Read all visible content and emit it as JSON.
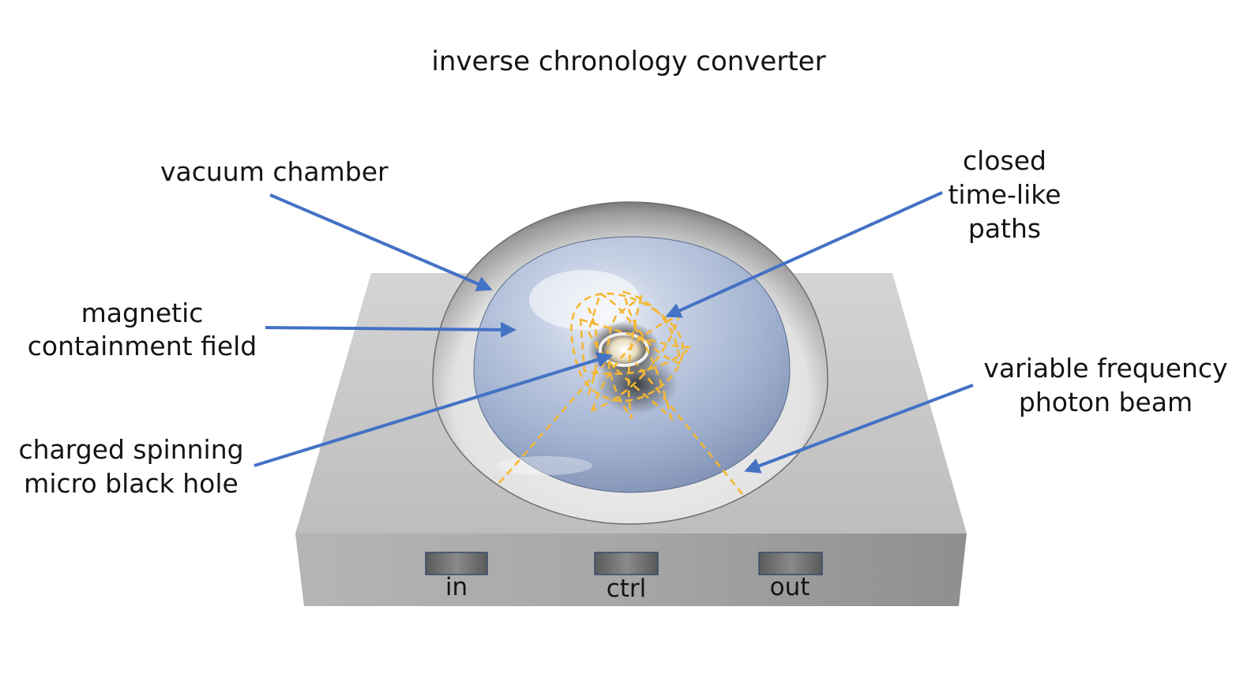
{
  "title": "inverse chronology converter",
  "labels": {
    "vacuum_chamber": "vacuum chamber",
    "magnetic_line1": "magnetic",
    "magnetic_line2": "containment field",
    "black_hole_line1": "charged spinning",
    "black_hole_line2": "micro black hole",
    "ctc_line1": "closed",
    "ctc_line2": "time-like",
    "ctc_line3": "paths",
    "beam_line1": "variable frequency",
    "beam_line2": "photon beam"
  },
  "ports": {
    "in": "in",
    "ctrl": "ctrl",
    "out": "out"
  },
  "colors": {
    "arrow": "#4472c4",
    "paths": "#f5b731",
    "base_top": "#c9c9c9",
    "base_front": "#a3a3a3"
  }
}
